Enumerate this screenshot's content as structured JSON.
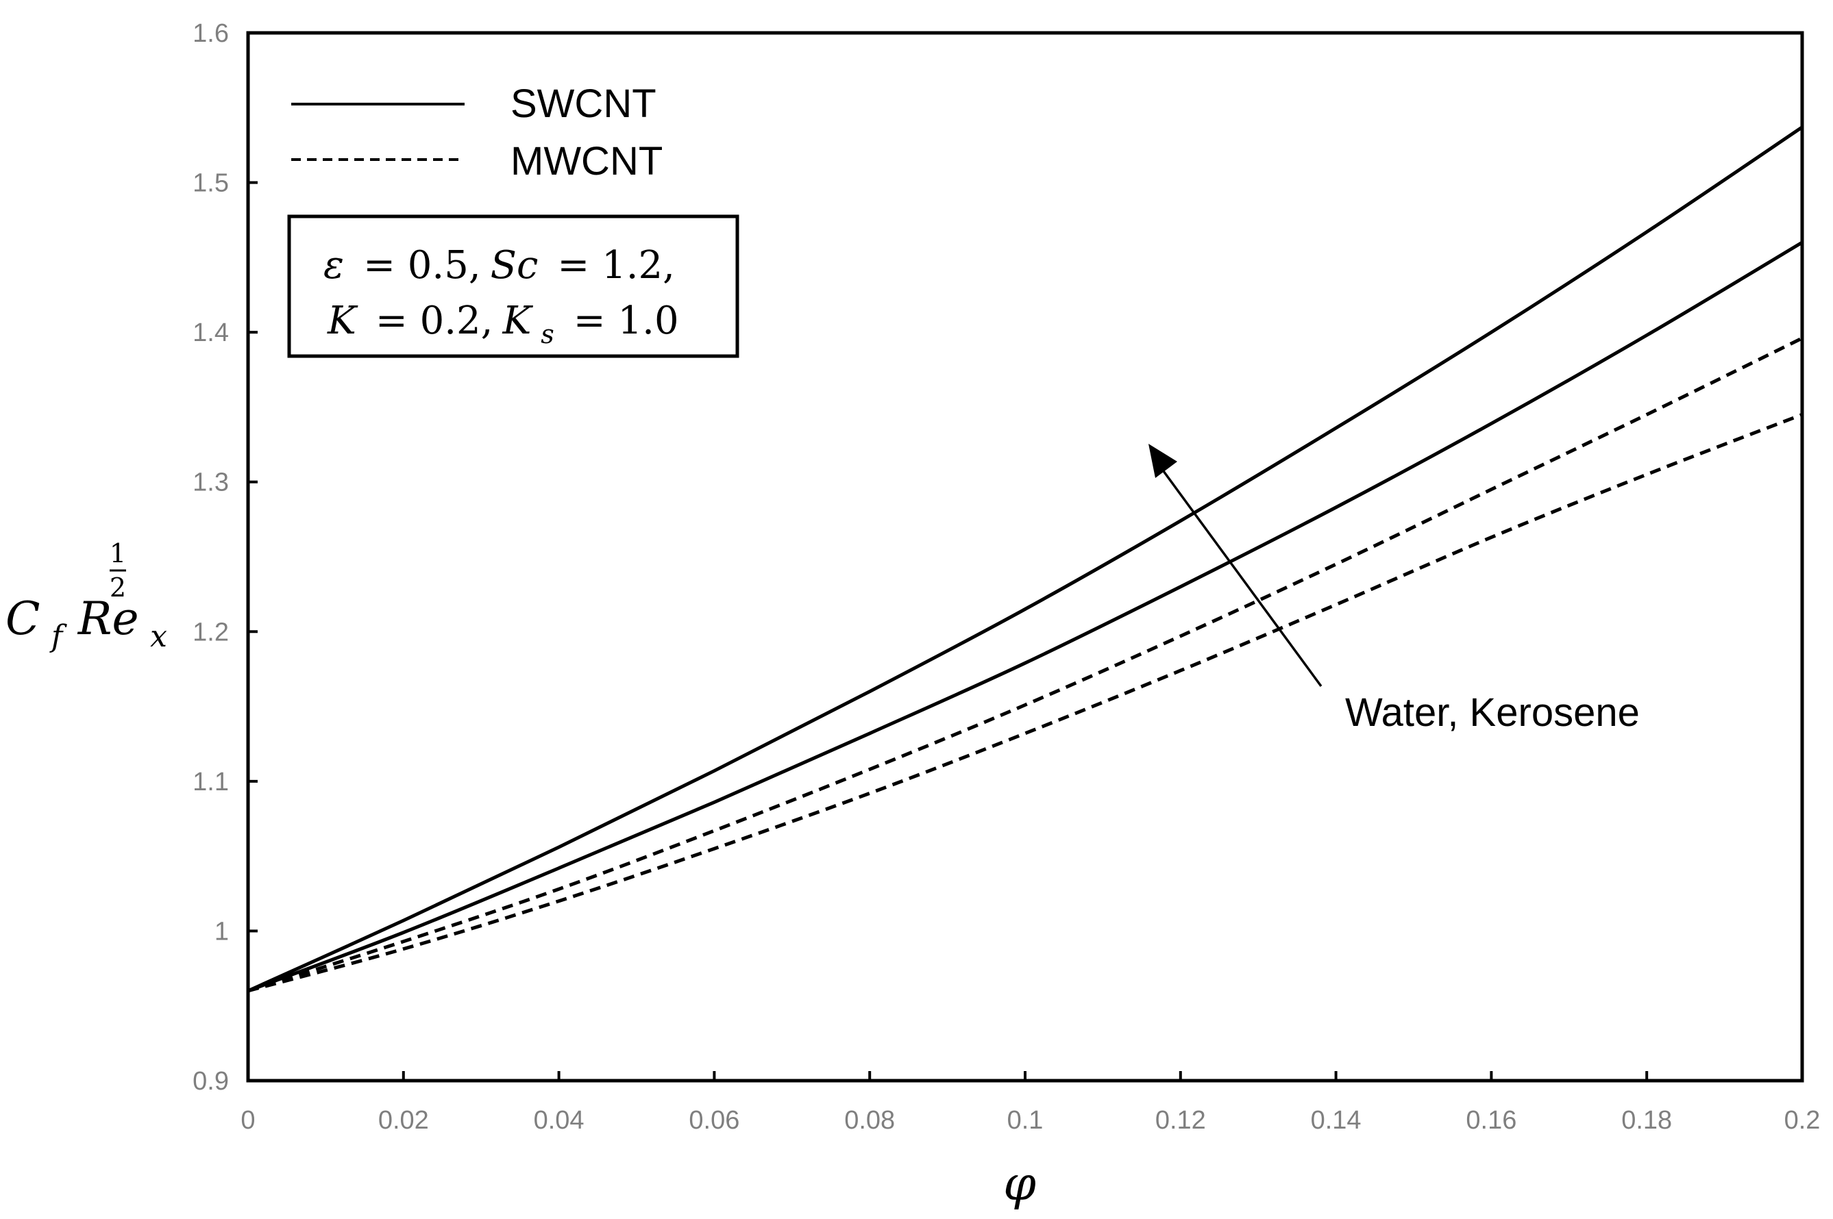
{
  "chart_data": {
    "type": "line",
    "title": "",
    "xlabel": "φ",
    "ylabel": {
      "base": "C",
      "sub1": "f",
      "mid": "Re",
      "sub2": "x",
      "sup_num": "1",
      "sup_den": "2"
    },
    "xlim": [
      0,
      0.2
    ],
    "ylim": [
      0.9,
      1.6
    ],
    "x_ticks": [
      "0",
      "0.02",
      "0.04",
      "0.06",
      "0.08",
      "0.1",
      "0.12",
      "0.14",
      "0.16",
      "0.18",
      "0.2"
    ],
    "y_ticks": [
      "0.9",
      "1",
      "1.1",
      "1.2",
      "1.3",
      "1.4",
      "1.5",
      "1.6"
    ],
    "grid": false,
    "legend": {
      "position": "top-left",
      "entries": [
        {
          "label": "SWCNT",
          "style": "solid"
        },
        {
          "label": "MWCNT",
          "style": "dashed"
        }
      ]
    },
    "parameters_box": {
      "line1": {
        "eps": "ε",
        "eps_val": "= 0.5,",
        "sc": "Sc",
        "sc_val": "= 1.2,"
      },
      "line2": {
        "k": "K",
        "k_val": "= 0.2,",
        "ks": "K",
        "ks_sub": "s",
        "ks_val": "= 1.0"
      }
    },
    "annotation": {
      "text": "Water, Kerosene",
      "arrow": "points toward increasing curves"
    },
    "x": [
      0,
      0.02,
      0.04,
      0.06,
      0.08,
      0.1,
      0.12,
      0.14,
      0.16,
      0.18,
      0.2
    ],
    "series": [
      {
        "name": "SWCNT Kerosene",
        "style": "solid",
        "values": [
          0.96,
          1.007,
          1.056,
          1.107,
          1.16,
          1.215,
          1.274,
          1.336,
          1.4,
          1.467,
          1.537
        ]
      },
      {
        "name": "SWCNT Water",
        "style": "solid",
        "values": [
          0.96,
          0.999,
          1.042,
          1.086,
          1.132,
          1.179,
          1.23,
          1.283,
          1.339,
          1.398,
          1.46
        ]
      },
      {
        "name": "MWCNT Kerosene",
        "style": "dashed",
        "values": [
          0.96,
          0.993,
          1.028,
          1.067,
          1.108,
          1.151,
          1.197,
          1.245,
          1.295,
          1.345,
          1.396
        ]
      },
      {
        "name": "MWCNT Water",
        "style": "dashed",
        "values": [
          0.96,
          0.988,
          1.02,
          1.055,
          1.092,
          1.132,
          1.174,
          1.218,
          1.263,
          1.305,
          1.345
        ]
      }
    ]
  }
}
